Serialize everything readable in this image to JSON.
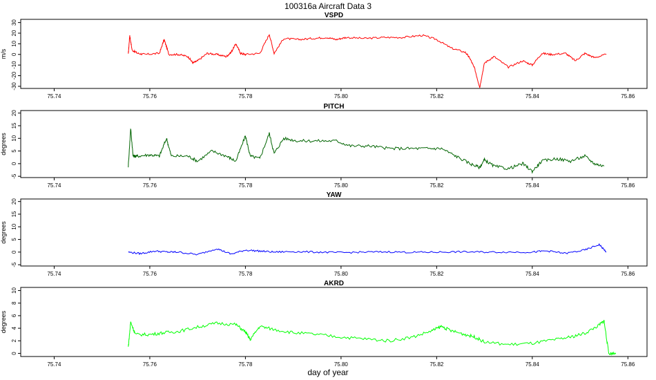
{
  "title": "100316a   Aircraft Data 3",
  "xlabel": "day of year",
  "colors": {
    "vspd": "#ff0000",
    "pitch": "#006400",
    "yaw": "#0000ff",
    "akrd": "#00ff00"
  },
  "chart_data": [
    {
      "type": "line",
      "title": "VSPD",
      "ylabel": "m/s",
      "color": "#ff0000",
      "xlim": [
        75.733,
        75.864
      ],
      "ylim": [
        -32,
        33
      ],
      "xticks": [
        "75.74",
        "75.76",
        "75.78",
        "75.80",
        "75.82",
        "75.84",
        "75.86"
      ],
      "yticks": [
        "-30",
        "-20",
        "-10",
        "0",
        "10",
        "20",
        "30"
      ],
      "x": [
        75.7555,
        75.7558,
        75.7563,
        75.7575,
        75.759,
        75.762,
        75.763,
        75.764,
        75.766,
        75.768,
        75.769,
        75.77,
        75.772,
        75.774,
        75.776,
        75.777,
        75.778,
        75.779,
        75.78,
        75.783,
        75.785,
        75.786,
        75.788,
        75.791,
        75.794,
        75.797,
        75.799,
        75.801,
        75.805,
        75.809,
        75.813,
        75.817,
        75.82,
        75.823,
        75.826,
        75.827,
        75.828,
        75.829,
        75.83,
        75.832,
        75.835,
        75.838,
        75.84,
        75.842,
        75.844,
        75.847,
        75.849,
        75.851,
        75.853,
        75.8555
      ],
      "y": [
        0,
        18,
        4,
        1,
        0,
        1,
        14,
        0,
        0,
        -2,
        -8,
        -6,
        1,
        0,
        -2,
        2,
        10,
        1,
        0,
        1,
        19,
        1,
        15,
        14,
        15,
        16,
        14,
        16,
        15,
        16,
        16,
        18,
        14,
        6,
        2,
        -4,
        -14,
        -31,
        -8,
        -2,
        -12,
        -6,
        -10,
        1,
        0,
        1,
        -6,
        1,
        -3,
        0
      ]
    },
    {
      "type": "line",
      "title": "PITCH",
      "ylabel": "degrees",
      "color": "#006400",
      "xlim": [
        75.733,
        75.864
      ],
      "ylim": [
        -5.5,
        21
      ],
      "xticks": [
        "75.74",
        "75.76",
        "75.78",
        "75.80",
        "75.82",
        "75.84",
        "75.86"
      ],
      "yticks": [
        "-5",
        "0",
        "5",
        "10",
        "15",
        "20"
      ],
      "x": [
        75.7555,
        75.756,
        75.7565,
        75.7575,
        75.76,
        75.762,
        75.7635,
        75.7645,
        75.768,
        75.77,
        75.773,
        75.776,
        75.778,
        75.78,
        75.781,
        75.783,
        75.785,
        75.786,
        75.788,
        75.791,
        75.795,
        75.799,
        75.802,
        75.806,
        75.81,
        75.814,
        75.818,
        75.821,
        75.824,
        75.827,
        75.829,
        75.83,
        75.832,
        75.835,
        75.838,
        75.84,
        75.842,
        75.845,
        75.848,
        75.851,
        75.853,
        75.855
      ],
      "y": [
        -1,
        14,
        3,
        3,
        3.5,
        3,
        10,
        3,
        3,
        1,
        5,
        3,
        1,
        11,
        3,
        2,
        12,
        4,
        10,
        9,
        9,
        9,
        7,
        7,
        6,
        6,
        6,
        6,
        3,
        0,
        -1.5,
        1.5,
        -1,
        -2,
        0,
        -3,
        1,
        2,
        1,
        3,
        0,
        -1
      ]
    },
    {
      "type": "line",
      "title": "YAW",
      "ylabel": "degrees",
      "color": "#0000ff",
      "xlim": [
        75.733,
        75.864
      ],
      "ylim": [
        -5.5,
        21
      ],
      "xticks": [
        "75.74",
        "75.76",
        "75.78",
        "75.80",
        "75.82",
        "75.84",
        "75.86"
      ],
      "yticks": [
        "-5",
        "0",
        "5",
        "10",
        "15",
        "20"
      ],
      "x": [
        75.7555,
        75.758,
        75.761,
        75.764,
        75.766,
        75.77,
        75.774,
        75.777,
        75.78,
        75.783,
        75.786,
        75.79,
        75.795,
        75.8,
        75.805,
        75.81,
        75.815,
        75.82,
        75.825,
        75.83,
        75.835,
        75.84,
        75.843,
        75.847,
        75.851,
        75.854,
        75.8555
      ],
      "y": [
        0,
        -0.6,
        0.4,
        0,
        0,
        -1.0,
        1.4,
        -0.8,
        0.8,
        0.4,
        0,
        0.2,
        0,
        -0.2,
        0,
        0.1,
        -0.1,
        0,
        0.1,
        0,
        0,
        0,
        0.5,
        -0.5,
        0.8,
        3,
        0
      ]
    },
    {
      "type": "line",
      "title": "AKRD",
      "ylabel": "degrees",
      "color": "#00ff00",
      "xlim": [
        75.733,
        75.864
      ],
      "ylim": [
        -0.5,
        10.5
      ],
      "xticks": [
        "75.74",
        "75.76",
        "75.78",
        "75.80",
        "75.82",
        "75.84",
        "75.86"
      ],
      "yticks": [
        "0",
        "2",
        "4",
        "6",
        "8",
        "10"
      ],
      "x": [
        75.7555,
        75.756,
        75.757,
        75.76,
        75.763,
        75.766,
        75.77,
        75.774,
        75.778,
        75.78,
        75.781,
        75.783,
        75.786,
        75.79,
        75.795,
        75.8,
        75.805,
        75.81,
        75.815,
        75.819,
        75.821,
        75.823,
        75.826,
        75.828,
        75.83,
        75.835,
        75.84,
        75.845,
        75.848,
        75.851,
        75.854,
        75.855,
        75.856,
        75.8575
      ],
      "y": [
        1,
        5,
        3,
        3,
        3.3,
        3.5,
        4.2,
        4.8,
        4.6,
        3.4,
        2.2,
        4.3,
        3.8,
        3.3,
        3.0,
        2.6,
        2.3,
        2.0,
        2.6,
        3.6,
        4.3,
        3.6,
        3.0,
        2.6,
        1.8,
        1.4,
        1.6,
        2.2,
        2.6,
        3.2,
        4.5,
        5.2,
        0,
        0
      ]
    }
  ]
}
